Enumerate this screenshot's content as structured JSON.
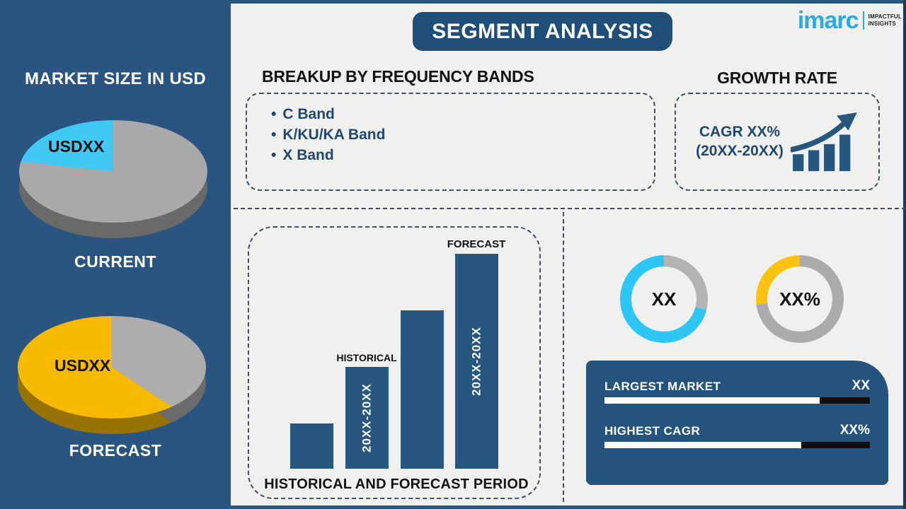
{
  "banner": {
    "title": "SEGMENT ANALYSIS"
  },
  "logo": {
    "name": "imarc",
    "tagline_line1": "IMPACTFUL",
    "tagline_line2": "INSIGHTS"
  },
  "theme": {
    "navy": "#27567E",
    "sidebar_navy": "#2A5580",
    "banner_navy": "#1F4E79",
    "cyan": "#2EC6F5",
    "yellow": "#FFC20E",
    "gray": "#ABABAB",
    "background": "#F0F0EE",
    "logo_blue": "#29ABE2"
  },
  "sidebar": {
    "heading": "MARKET SIZE IN USD"
  },
  "breakup": {
    "heading": "BREAKUP BY FREQUENCY BANDS",
    "bullet": "•",
    "items": [
      "C Band",
      "K/KU/KA Band",
      "X Band"
    ]
  },
  "growth": {
    "heading": "GROWTH RATE",
    "cagr_line1": "CAGR XX%",
    "cagr_line2": "(20XX-20XX)"
  },
  "stats": {
    "rows": [
      {
        "label": "LARGEST MARKET",
        "value": "XX",
        "progress": 81
      },
      {
        "label": "HIGHEST CAGR",
        "value": "XX%",
        "progress": 74
      }
    ]
  },
  "chart_data": [
    {
      "id": "pie-current",
      "type": "pie",
      "title": "CURRENT",
      "slice_label": "USDXX",
      "labels": [
        "USDXX slice",
        "remainder"
      ],
      "values": [
        22,
        78
      ],
      "colors": [
        "#3FC9F4",
        "#A9A9A9"
      ]
    },
    {
      "id": "pie-forecast",
      "type": "pie",
      "title": "FORECAST",
      "slice_label": "USDXX",
      "labels": [
        "USDXX slice",
        "remainder"
      ],
      "values": [
        61,
        39
      ],
      "colors": [
        "#F7BA00",
        "#ADADAD"
      ]
    },
    {
      "id": "period-bars",
      "type": "bar",
      "title": "HISTORICAL AND FORECAST PERIOD",
      "categories": [
        "",
        "HISTORICAL",
        "",
        "FORECAST"
      ],
      "values": [
        20,
        45,
        70,
        95
      ],
      "bar_labels": [
        "",
        "20XX-20XX",
        "",
        "20XX-20XX"
      ],
      "color": "#27567E",
      "ylim": [
        0,
        100
      ],
      "grid": false
    },
    {
      "id": "donut-largest-market",
      "type": "donut",
      "center_label": "XX",
      "labels": [
        "filled",
        "remainder"
      ],
      "values": [
        71,
        29
      ],
      "colors": [
        "#2EC6F5",
        "#B3B3B3"
      ]
    },
    {
      "id": "donut-highest-cagr",
      "type": "donut",
      "center_label": "XX%",
      "labels": [
        "filled",
        "remainder"
      ],
      "values": [
        27,
        73
      ],
      "colors": [
        "#FFC20E",
        "#ABABAB"
      ]
    }
  ]
}
